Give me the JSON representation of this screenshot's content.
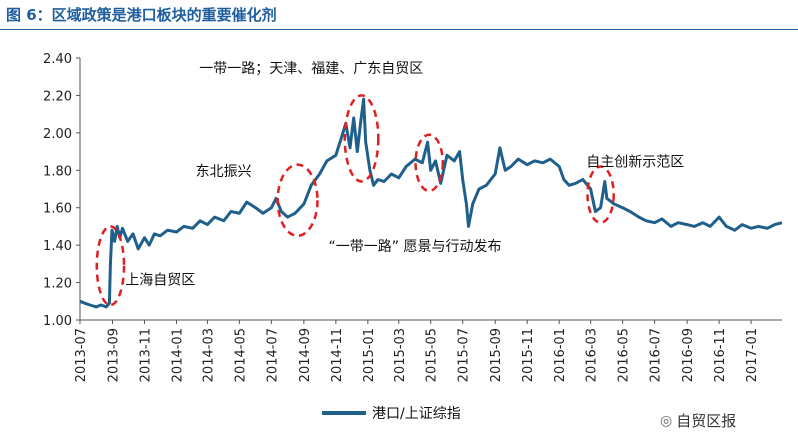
{
  "chart_data": {
    "type": "line",
    "title": "图 6：区域政策是港口板块的重要催化剂",
    "xlabel": "",
    "ylabel": "",
    "ylim": [
      1.0,
      2.4
    ],
    "yticks": [
      "1.00",
      "1.20",
      "1.40",
      "1.60",
      "1.80",
      "2.00",
      "2.20",
      "2.40"
    ],
    "xticks": [
      "2013-07",
      "2013-09",
      "2013-11",
      "2014-01",
      "2014-03",
      "2014-05",
      "2014-07",
      "2014-09",
      "2014-11",
      "2015-01",
      "2015-03",
      "2015-05",
      "2015-07",
      "2015-09",
      "2015-11",
      "2016-01",
      "2016-03",
      "2016-05",
      "2016-07",
      "2016-09",
      "2016-11",
      "2017-01"
    ],
    "xrange": [
      "2013-07-01",
      "2017-03-01"
    ],
    "grid": false,
    "legend_position": "bottom",
    "series": [
      {
        "name": "港口/上证综指",
        "color": "#1f5f8b",
        "points": [
          [
            "2013-07-01",
            1.1
          ],
          [
            "2013-07-10",
            1.09
          ],
          [
            "2013-07-20",
            1.08
          ],
          [
            "2013-08-01",
            1.07
          ],
          [
            "2013-08-10",
            1.08
          ],
          [
            "2013-08-20",
            1.07
          ],
          [
            "2013-08-26",
            1.09
          ],
          [
            "2013-08-28",
            1.3
          ],
          [
            "2013-08-31",
            1.48
          ],
          [
            "2013-09-05",
            1.42
          ],
          [
            "2013-09-10",
            1.5
          ],
          [
            "2013-09-15",
            1.44
          ],
          [
            "2013-09-20",
            1.49
          ],
          [
            "2013-09-30",
            1.42
          ],
          [
            "2013-10-10",
            1.46
          ],
          [
            "2013-10-20",
            1.38
          ],
          [
            "2013-11-01",
            1.44
          ],
          [
            "2013-11-10",
            1.4
          ],
          [
            "2013-11-20",
            1.46
          ],
          [
            "2013-12-01",
            1.45
          ],
          [
            "2013-12-15",
            1.48
          ],
          [
            "2014-01-01",
            1.47
          ],
          [
            "2014-01-15",
            1.5
          ],
          [
            "2014-02-01",
            1.49
          ],
          [
            "2014-02-15",
            1.53
          ],
          [
            "2014-03-01",
            1.51
          ],
          [
            "2014-03-15",
            1.55
          ],
          [
            "2014-04-01",
            1.53
          ],
          [
            "2014-04-15",
            1.58
          ],
          [
            "2014-05-01",
            1.57
          ],
          [
            "2014-05-15",
            1.63
          ],
          [
            "2014-06-01",
            1.6
          ],
          [
            "2014-06-15",
            1.57
          ],
          [
            "2014-07-01",
            1.6
          ],
          [
            "2014-07-10",
            1.65
          ],
          [
            "2014-07-20",
            1.58
          ],
          [
            "2014-08-01",
            1.55
          ],
          [
            "2014-08-15",
            1.57
          ],
          [
            "2014-09-01",
            1.62
          ],
          [
            "2014-09-15",
            1.72
          ],
          [
            "2014-10-01",
            1.78
          ],
          [
            "2014-10-15",
            1.85
          ],
          [
            "2014-11-01",
            1.88
          ],
          [
            "2014-11-10",
            1.96
          ],
          [
            "2014-11-20",
            2.05
          ],
          [
            "2014-11-28",
            1.92
          ],
          [
            "2014-12-05",
            2.08
          ],
          [
            "2014-12-12",
            1.9
          ],
          [
            "2014-12-18",
            2.05
          ],
          [
            "2014-12-24",
            2.18
          ],
          [
            "2014-12-28",
            1.95
          ],
          [
            "2015-01-05",
            1.8
          ],
          [
            "2015-01-12",
            1.72
          ],
          [
            "2015-01-20",
            1.75
          ],
          [
            "2015-02-01",
            1.74
          ],
          [
            "2015-02-15",
            1.78
          ],
          [
            "2015-03-01",
            1.76
          ],
          [
            "2015-03-15",
            1.82
          ],
          [
            "2015-04-01",
            1.86
          ],
          [
            "2015-04-15",
            1.84
          ],
          [
            "2015-04-25",
            1.95
          ],
          [
            "2015-05-01",
            1.8
          ],
          [
            "2015-05-10",
            1.85
          ],
          [
            "2015-05-20",
            1.73
          ],
          [
            "2015-06-01",
            1.88
          ],
          [
            "2015-06-15",
            1.85
          ],
          [
            "2015-06-25",
            1.9
          ],
          [
            "2015-07-01",
            1.75
          ],
          [
            "2015-07-08",
            1.62
          ],
          [
            "2015-07-12",
            1.5
          ],
          [
            "2015-07-20",
            1.62
          ],
          [
            "2015-08-01",
            1.7
          ],
          [
            "2015-08-15",
            1.72
          ],
          [
            "2015-09-01",
            1.78
          ],
          [
            "2015-09-10",
            1.92
          ],
          [
            "2015-09-20",
            1.8
          ],
          [
            "2015-10-01",
            1.82
          ],
          [
            "2015-10-15",
            1.86
          ],
          [
            "2015-11-01",
            1.83
          ],
          [
            "2015-11-15",
            1.85
          ],
          [
            "2015-12-01",
            1.84
          ],
          [
            "2015-12-15",
            1.86
          ],
          [
            "2016-01-01",
            1.82
          ],
          [
            "2016-01-10",
            1.75
          ],
          [
            "2016-01-20",
            1.72
          ],
          [
            "2016-02-01",
            1.73
          ],
          [
            "2016-02-15",
            1.75
          ],
          [
            "2016-03-01",
            1.7
          ],
          [
            "2016-03-10",
            1.58
          ],
          [
            "2016-03-20",
            1.6
          ],
          [
            "2016-03-28",
            1.74
          ],
          [
            "2016-04-01",
            1.65
          ],
          [
            "2016-04-15",
            1.62
          ],
          [
            "2016-05-01",
            1.6
          ],
          [
            "2016-05-15",
            1.58
          ],
          [
            "2016-06-01",
            1.55
          ],
          [
            "2016-06-15",
            1.53
          ],
          [
            "2016-07-01",
            1.52
          ],
          [
            "2016-07-15",
            1.54
          ],
          [
            "2016-08-01",
            1.5
          ],
          [
            "2016-08-15",
            1.52
          ],
          [
            "2016-09-01",
            1.51
          ],
          [
            "2016-09-15",
            1.5
          ],
          [
            "2016-10-01",
            1.52
          ],
          [
            "2016-10-15",
            1.5
          ],
          [
            "2016-11-01",
            1.55
          ],
          [
            "2016-11-15",
            1.5
          ],
          [
            "2016-12-01",
            1.48
          ],
          [
            "2016-12-15",
            1.51
          ],
          [
            "2017-01-01",
            1.49
          ],
          [
            "2017-01-15",
            1.5
          ],
          [
            "2017-02-01",
            1.49
          ],
          [
            "2017-02-15",
            1.51
          ],
          [
            "2017-03-01",
            1.52
          ]
        ]
      }
    ],
    "annotations": [
      {
        "text": "一带一路；天津、福建、广东自贸区",
        "x": "2014-09-15",
        "y": 2.32
      },
      {
        "text": "东北振兴",
        "x": "2014-04-01",
        "y": 1.77
      },
      {
        "text": "“一带一路” 愿景与行动发布",
        "x": "2015-04-01",
        "y": 1.37
      },
      {
        "text": "上海自贸区",
        "x": "2013-12-01",
        "y": 1.19
      },
      {
        "text": "自主创新示范区",
        "x": "2016-05-25",
        "y": 1.82
      }
    ],
    "highlight_ellipses": [
      {
        "center": [
          "2013-08-28",
          1.29
        ],
        "rx_days": 26,
        "ry": 0.21
      },
      {
        "center": [
          "2014-08-20",
          1.64
        ],
        "rx_days": 38,
        "ry": 0.19
      },
      {
        "center": [
          "2014-12-20",
          1.97
        ],
        "rx_days": 32,
        "ry": 0.23
      },
      {
        "center": [
          "2015-04-28",
          1.84
        ],
        "rx_days": 26,
        "ry": 0.15
      },
      {
        "center": [
          "2016-03-20",
          1.67
        ],
        "rx_days": 25,
        "ry": 0.15
      }
    ],
    "ellipse_color": "#e02020"
  },
  "watermark": {
    "text": "自贸区报",
    "icon": "wechat-icon"
  }
}
